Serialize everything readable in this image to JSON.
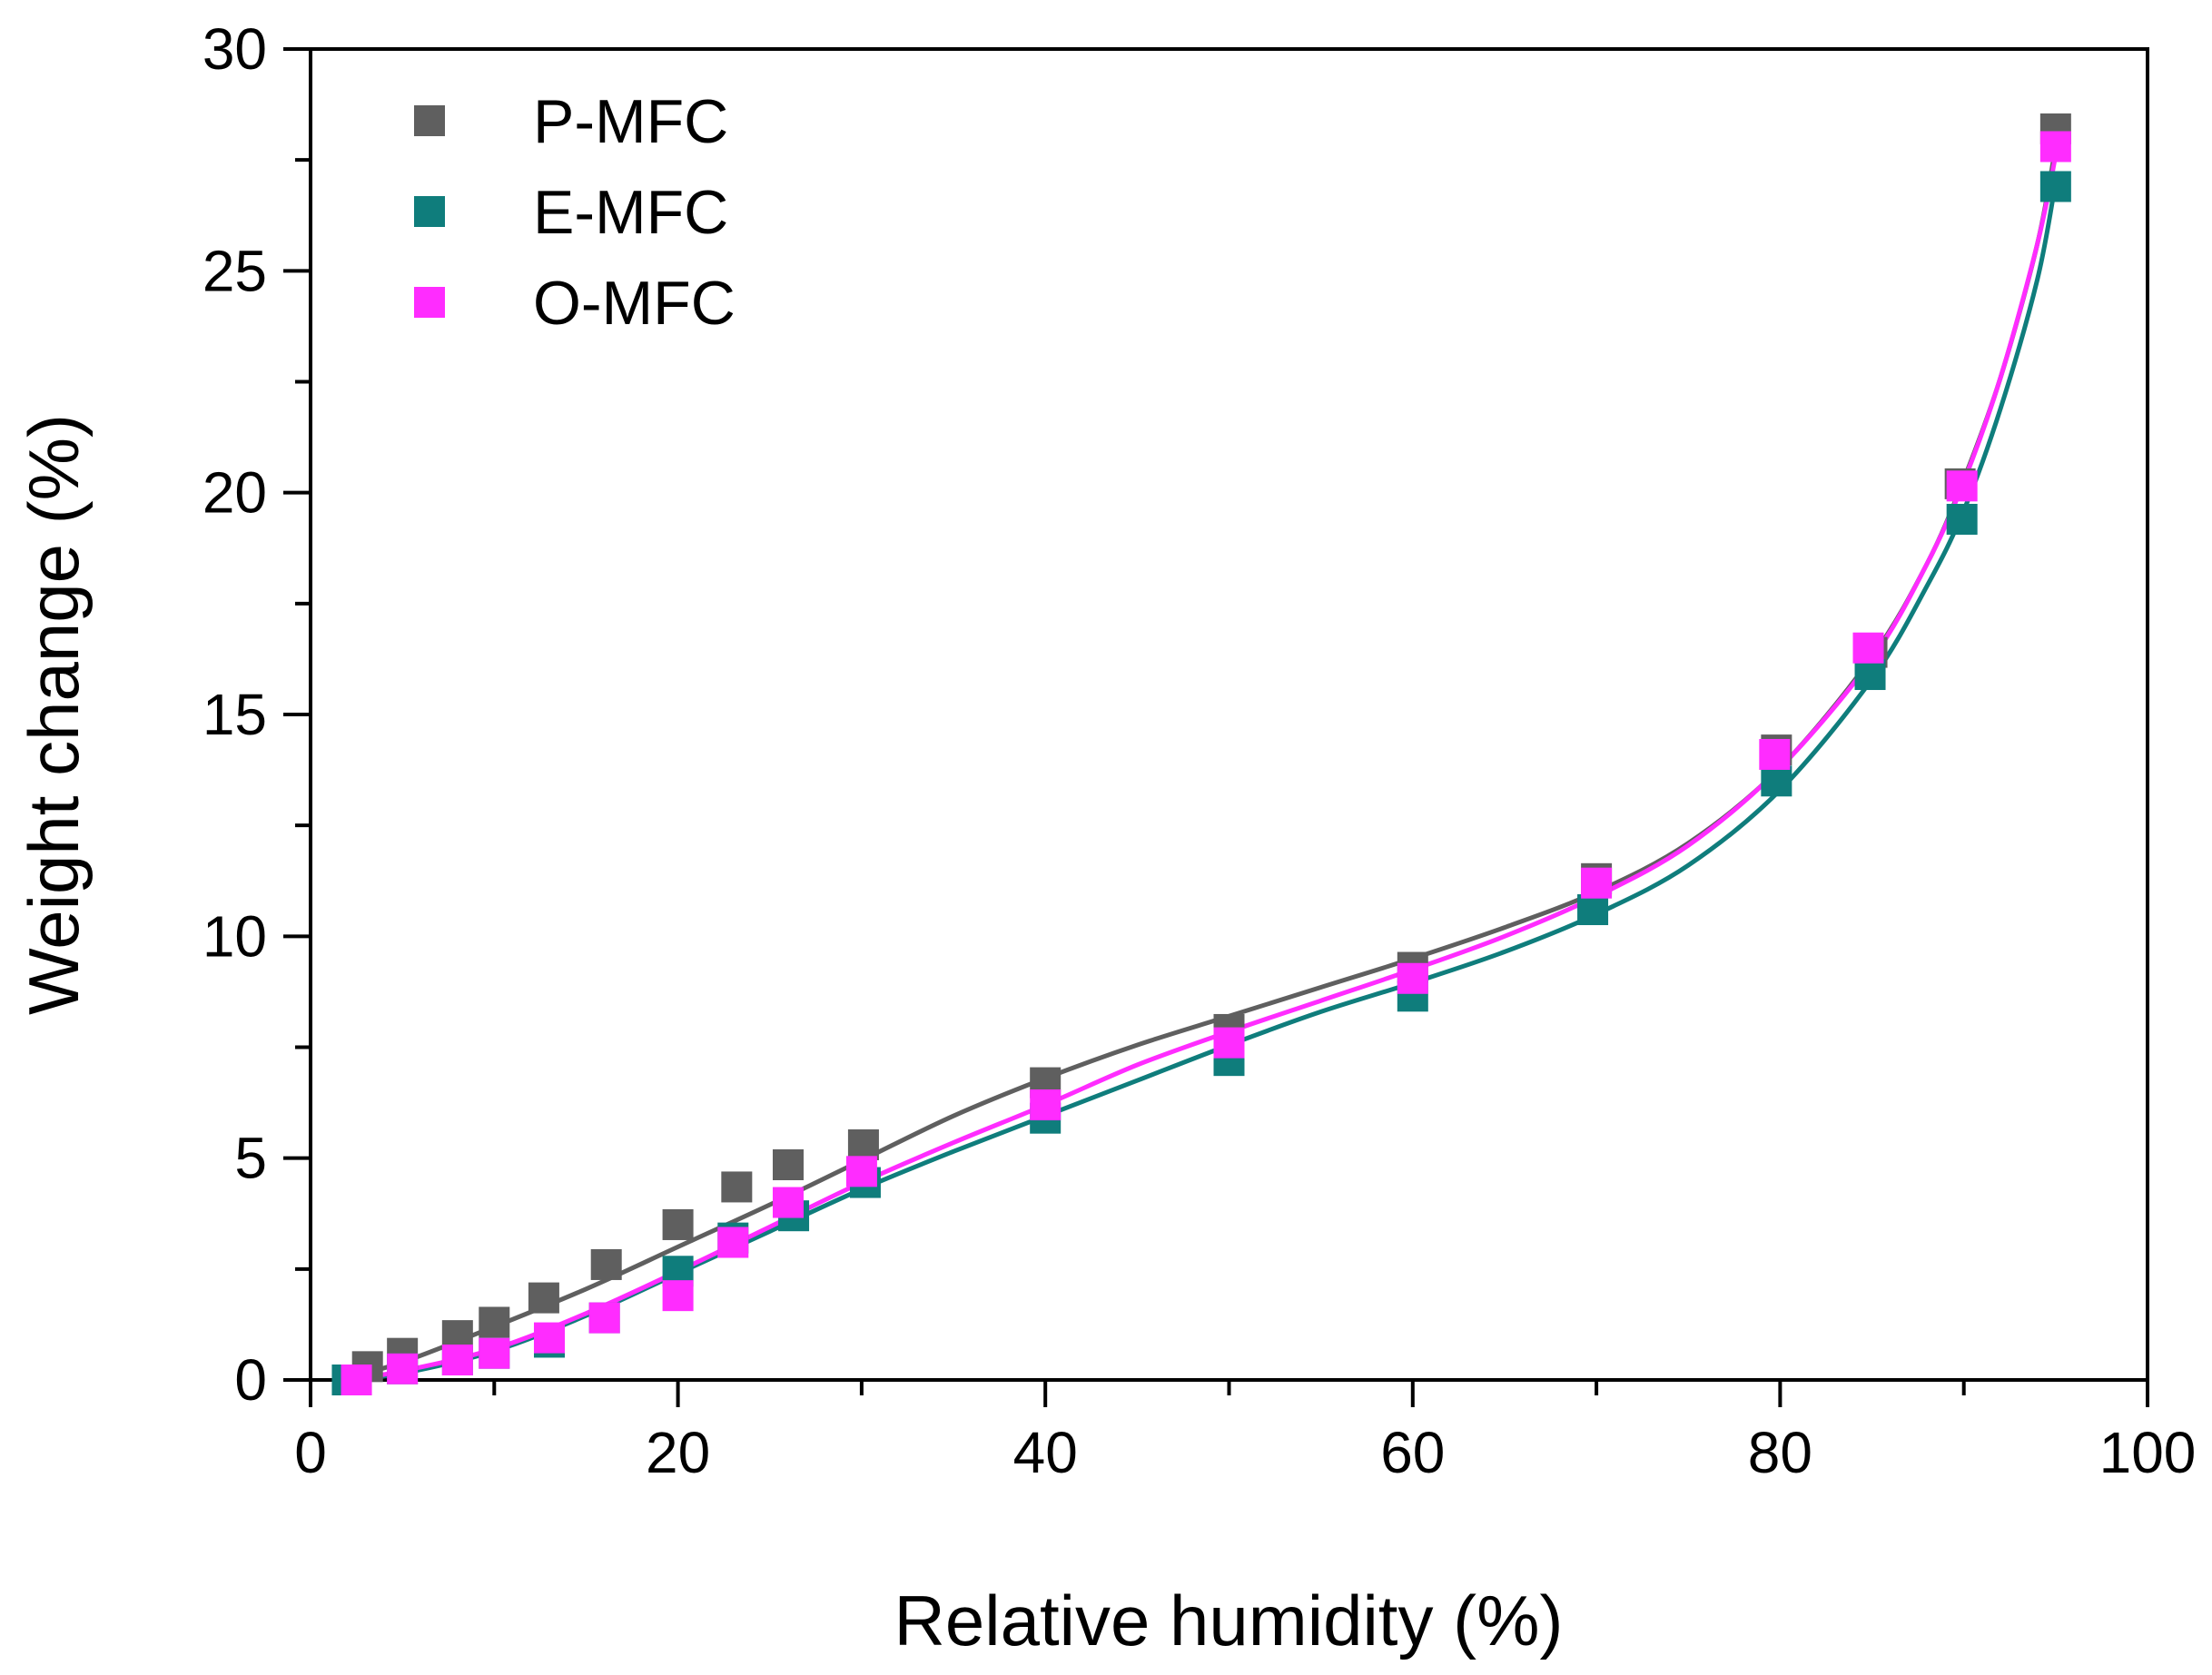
{
  "chart_data": {
    "type": "scatter",
    "title": "",
    "xlabel": "Relative humidity (%)",
    "ylabel": "Weight change (%)",
    "xlim": [
      0,
      100
    ],
    "ylim": [
      0,
      30
    ],
    "x_ticks": [
      0,
      20,
      40,
      60,
      80,
      100
    ],
    "x_tick_labels": [
      "0",
      "20",
      "40",
      "60",
      "80",
      "100"
    ],
    "y_ticks": [
      0,
      5,
      10,
      15,
      20,
      25,
      30
    ],
    "y_tick_labels": [
      "0",
      "5",
      "10",
      "15",
      "20",
      "25",
      "30"
    ],
    "grid": false,
    "legend_position": "top-left",
    "series": [
      {
        "name": "P-MFC",
        "color": "#5f5f5f",
        "marker": "square",
        "x": [
          3.1,
          5.0,
          8.0,
          10.0,
          12.7,
          16.1,
          20.0,
          23.2,
          26.0,
          30.1,
          40.0,
          50.0,
          60.0,
          70.0,
          79.8,
          85.0,
          89.8,
          95.0
        ],
        "y": [
          0.3,
          0.6,
          1.0,
          1.3,
          1.85,
          2.6,
          3.5,
          4.35,
          4.85,
          5.3,
          6.7,
          7.9,
          9.3,
          11.3,
          14.2,
          16.4,
          20.2,
          28.2
        ],
        "fit_x": [
          2,
          5,
          10,
          15,
          20,
          25,
          30,
          35,
          40,
          45,
          50,
          55,
          60,
          65,
          70,
          75,
          80,
          85,
          88,
          90,
          92,
          94,
          95
        ],
        "fit_y": [
          0.05,
          0.4,
          1.2,
          2.05,
          3.0,
          3.95,
          4.95,
          5.95,
          6.8,
          7.55,
          8.2,
          8.85,
          9.5,
          10.2,
          11.0,
          12.1,
          13.8,
          16.3,
          18.4,
          20.3,
          22.6,
          25.6,
          27.8
        ]
      },
      {
        "name": "E-MFC",
        "color": "#0f7d7c",
        "marker": "square",
        "x": [
          2.0,
          5.0,
          8.0,
          10.0,
          13.0,
          16.0,
          20.0,
          23.0,
          26.3,
          30.2,
          40.0,
          50.0,
          60.0,
          69.8,
          79.8,
          84.9,
          89.9,
          95.0
        ],
        "y": [
          0.0,
          0.25,
          0.45,
          0.6,
          0.85,
          1.4,
          2.45,
          3.2,
          3.7,
          4.45,
          5.9,
          7.2,
          8.65,
          10.6,
          13.5,
          15.9,
          19.4,
          26.9
        ],
        "fit_x": [
          2,
          5,
          10,
          15,
          20,
          25,
          30,
          35,
          40,
          45,
          50,
          55,
          60,
          65,
          70,
          75,
          80,
          85,
          88,
          90,
          92,
          94,
          95
        ],
        "fit_y": [
          0.0,
          0.15,
          0.65,
          1.45,
          2.4,
          3.35,
          4.3,
          5.15,
          5.95,
          6.75,
          7.55,
          8.3,
          8.95,
          9.65,
          10.5,
          11.6,
          13.3,
          15.8,
          17.9,
          19.6,
          21.9,
          24.8,
          27.0
        ]
      },
      {
        "name": "O-MFC",
        "color": "#ff2cff",
        "marker": "square",
        "x": [
          2.5,
          5.0,
          8.0,
          10.0,
          13.0,
          16.0,
          20.0,
          23.0,
          26.0,
          30.0,
          40.0,
          50.0,
          60.0,
          70.0,
          79.7,
          84.8,
          89.9,
          95.0
        ],
        "y": [
          0.0,
          0.25,
          0.45,
          0.6,
          0.95,
          1.4,
          1.9,
          3.1,
          4.0,
          4.7,
          6.2,
          7.6,
          9.05,
          11.2,
          14.1,
          16.5,
          20.15,
          27.8
        ],
        "fit_x": [
          2,
          5,
          10,
          15,
          20,
          25,
          30,
          35,
          40,
          45,
          50,
          55,
          60,
          65,
          70,
          75,
          80,
          85,
          88,
          90,
          92,
          94,
          95
        ],
        "fit_y": [
          0.0,
          0.2,
          0.7,
          1.5,
          2.45,
          3.45,
          4.45,
          5.35,
          6.2,
          7.1,
          7.85,
          8.55,
          9.25,
          10.0,
          10.9,
          12.05,
          13.8,
          16.25,
          18.4,
          20.25,
          22.6,
          25.6,
          27.6
        ]
      }
    ]
  }
}
